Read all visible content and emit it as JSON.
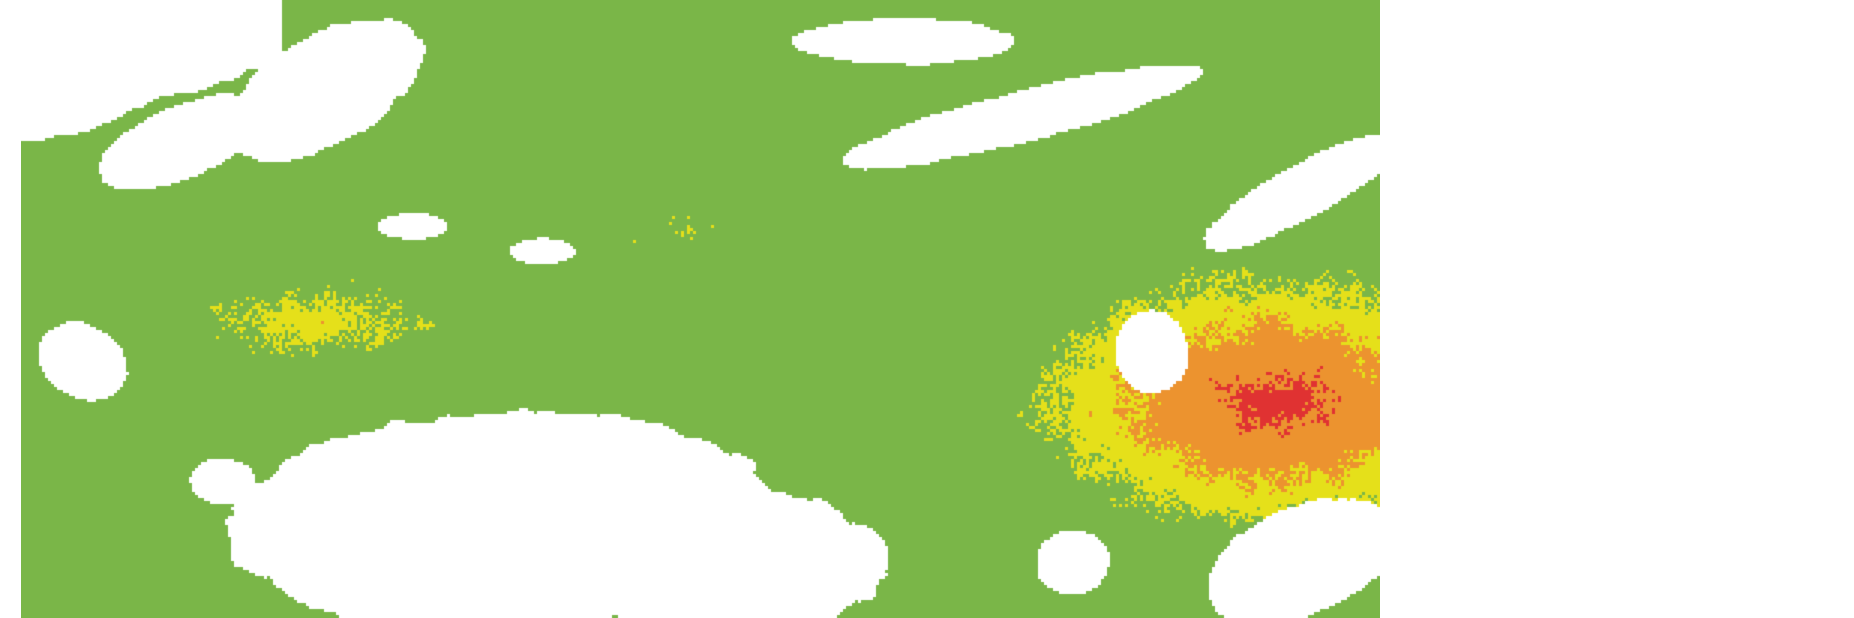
{
  "map": {
    "type": "classified-raster",
    "background": "#ffffff",
    "classes": [
      {
        "color": "#7ab648"
      },
      {
        "color": "#e5e01a"
      },
      {
        "color": "#ec932f"
      },
      {
        "color": "#e03232"
      }
    ],
    "nodata_color": "#ffffff"
  }
}
